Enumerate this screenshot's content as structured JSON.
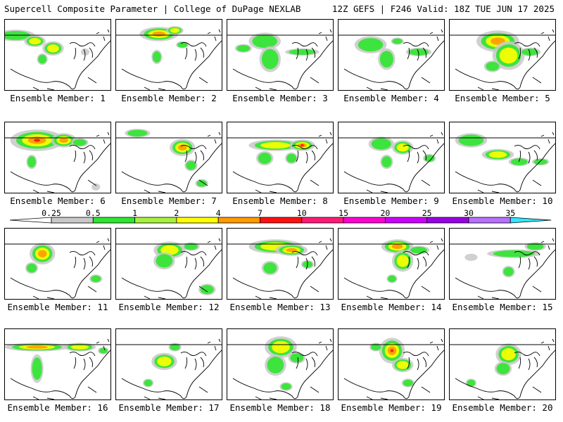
{
  "header": {
    "title_left": "Supercell Composite Parameter | College of DuPage NEXLAB",
    "title_right": "12Z GEFS | F246 Valid: 18Z TUE JUN 17 2025"
  },
  "member_label_prefix": "Ensemble Member: ",
  "members": [
    {
      "id": "1",
      "blobs": [
        [
          0.1,
          0.22,
          0.18,
          0.08,
          1
        ],
        [
          0.28,
          0.3,
          0.1,
          0.08,
          2
        ],
        [
          0.45,
          0.4,
          0.1,
          0.1,
          2
        ],
        [
          0.35,
          0.55,
          0.05,
          0.08,
          1
        ],
        [
          0.75,
          0.45,
          0.04,
          0.05,
          0
        ]
      ]
    },
    {
      "id": "2",
      "blobs": [
        [
          0.4,
          0.2,
          0.18,
          0.1,
          3
        ],
        [
          0.55,
          0.15,
          0.08,
          0.06,
          2
        ],
        [
          0.38,
          0.52,
          0.05,
          0.1,
          1
        ],
        [
          0.62,
          0.35,
          0.06,
          0.05,
          1
        ]
      ]
    },
    {
      "id": "3",
      "blobs": [
        [
          0.35,
          0.3,
          0.15,
          0.12,
          1
        ],
        [
          0.4,
          0.55,
          0.1,
          0.18,
          1
        ],
        [
          0.7,
          0.45,
          0.16,
          0.05,
          1
        ],
        [
          0.15,
          0.4,
          0.08,
          0.06,
          1
        ]
      ]
    },
    {
      "id": "4",
      "blobs": [
        [
          0.3,
          0.35,
          0.15,
          0.12,
          1
        ],
        [
          0.45,
          0.55,
          0.08,
          0.15,
          1
        ],
        [
          0.75,
          0.45,
          0.12,
          0.06,
          1
        ],
        [
          0.55,
          0.3,
          0.06,
          0.05,
          1
        ]
      ]
    },
    {
      "id": "5",
      "blobs": [
        [
          0.45,
          0.3,
          0.2,
          0.15,
          3
        ],
        [
          0.55,
          0.5,
          0.15,
          0.2,
          2
        ],
        [
          0.75,
          0.45,
          0.1,
          0.06,
          1
        ],
        [
          0.4,
          0.65,
          0.08,
          0.08,
          1
        ]
      ]
    },
    {
      "id": "6",
      "blobs": [
        [
          0.3,
          0.25,
          0.25,
          0.15,
          4
        ],
        [
          0.55,
          0.25,
          0.12,
          0.1,
          3
        ],
        [
          0.7,
          0.28,
          0.08,
          0.06,
          1
        ],
        [
          0.25,
          0.55,
          0.05,
          0.1,
          1
        ],
        [
          0.85,
          0.9,
          0.04,
          0.05,
          0
        ]
      ]
    },
    {
      "id": "7",
      "blobs": [
        [
          0.2,
          0.15,
          0.12,
          0.06,
          1
        ],
        [
          0.62,
          0.35,
          0.12,
          0.12,
          3
        ],
        [
          0.7,
          0.6,
          0.06,
          0.08,
          1
        ],
        [
          0.8,
          0.85,
          0.06,
          0.06,
          1
        ]
      ]
    },
    {
      "id": "8",
      "blobs": [
        [
          0.45,
          0.32,
          0.25,
          0.08,
          2
        ],
        [
          0.7,
          0.32,
          0.12,
          0.08,
          4
        ],
        [
          0.35,
          0.5,
          0.08,
          0.1,
          1
        ],
        [
          0.6,
          0.5,
          0.06,
          0.08,
          1
        ]
      ]
    },
    {
      "id": "9",
      "blobs": [
        [
          0.4,
          0.3,
          0.12,
          0.1,
          1
        ],
        [
          0.6,
          0.35,
          0.1,
          0.1,
          2
        ],
        [
          0.45,
          0.55,
          0.06,
          0.1,
          1
        ],
        [
          0.85,
          0.5,
          0.06,
          0.06,
          1
        ]
      ]
    },
    {
      "id": "10",
      "blobs": [
        [
          0.2,
          0.25,
          0.15,
          0.1,
          1
        ],
        [
          0.45,
          0.45,
          0.15,
          0.08,
          2
        ],
        [
          0.65,
          0.55,
          0.1,
          0.06,
          1
        ],
        [
          0.85,
          0.55,
          0.08,
          0.05,
          1
        ]
      ]
    },
    {
      "id": "11",
      "blobs": [
        [
          0.35,
          0.35,
          0.12,
          0.15,
          3
        ],
        [
          0.25,
          0.55,
          0.06,
          0.08,
          1
        ],
        [
          0.85,
          0.7,
          0.06,
          0.06,
          1
        ]
      ]
    },
    {
      "id": "12",
      "blobs": [
        [
          0.5,
          0.3,
          0.15,
          0.12,
          2
        ],
        [
          0.45,
          0.45,
          0.1,
          0.12,
          1
        ],
        [
          0.7,
          0.25,
          0.08,
          0.06,
          1
        ],
        [
          0.85,
          0.85,
          0.08,
          0.08,
          1
        ]
      ]
    },
    {
      "id": "13",
      "blobs": [
        [
          0.45,
          0.25,
          0.25,
          0.1,
          2
        ],
        [
          0.6,
          0.3,
          0.15,
          0.08,
          3
        ],
        [
          0.4,
          0.55,
          0.08,
          0.1,
          1
        ],
        [
          0.75,
          0.5,
          0.06,
          0.06,
          1
        ]
      ]
    },
    {
      "id": "14",
      "blobs": [
        [
          0.55,
          0.25,
          0.15,
          0.1,
          3
        ],
        [
          0.6,
          0.45,
          0.1,
          0.15,
          2
        ],
        [
          0.75,
          0.3,
          0.1,
          0.06,
          1
        ],
        [
          0.5,
          0.7,
          0.05,
          0.06,
          1
        ]
      ]
    },
    {
      "id": "15",
      "blobs": [
        [
          0.6,
          0.35,
          0.25,
          0.06,
          1
        ],
        [
          0.8,
          0.25,
          0.1,
          0.06,
          1
        ],
        [
          0.55,
          0.6,
          0.06,
          0.08,
          1
        ],
        [
          0.2,
          0.4,
          0.06,
          0.05,
          0
        ]
      ]
    },
    {
      "id": "16",
      "blobs": [
        [
          0.3,
          0.25,
          0.3,
          0.06,
          3
        ],
        [
          0.3,
          0.55,
          0.06,
          0.2,
          1
        ],
        [
          0.7,
          0.25,
          0.15,
          0.06,
          2
        ],
        [
          0.92,
          0.3,
          0.05,
          0.05,
          1
        ]
      ]
    },
    {
      "id": "17",
      "blobs": [
        [
          0.45,
          0.45,
          0.12,
          0.12,
          2
        ],
        [
          0.55,
          0.25,
          0.06,
          0.06,
          1
        ],
        [
          0.3,
          0.75,
          0.05,
          0.06,
          1
        ]
      ]
    },
    {
      "id": "18",
      "blobs": [
        [
          0.5,
          0.25,
          0.15,
          0.15,
          2
        ],
        [
          0.45,
          0.5,
          0.1,
          0.15,
          1
        ],
        [
          0.65,
          0.4,
          0.08,
          0.08,
          1
        ],
        [
          0.55,
          0.8,
          0.06,
          0.06,
          1
        ]
      ]
    },
    {
      "id": "19",
      "blobs": [
        [
          0.5,
          0.3,
          0.12,
          0.18,
          4
        ],
        [
          0.6,
          0.5,
          0.1,
          0.1,
          2
        ],
        [
          0.65,
          0.75,
          0.06,
          0.06,
          1
        ],
        [
          0.35,
          0.25,
          0.06,
          0.06,
          1
        ]
      ]
    },
    {
      "id": "20",
      "blobs": [
        [
          0.55,
          0.35,
          0.12,
          0.15,
          2
        ],
        [
          0.5,
          0.55,
          0.08,
          0.1,
          1
        ],
        [
          0.2,
          0.75,
          0.05,
          0.06,
          1
        ]
      ]
    }
  ],
  "colorbar": {
    "ticks": [
      "0.25",
      "0.5",
      "1",
      "2",
      "4",
      "7",
      "10",
      "15",
      "20",
      "25",
      "30",
      "35"
    ],
    "colors": [
      "#ffffff",
      "#c8c8c8",
      "#2ee62e",
      "#a6f23c",
      "#ffff00",
      "#ff9a00",
      "#ff1010",
      "#ff1a7a",
      "#ff00d2",
      "#cc00ff",
      "#9a00e6",
      "#b870ff",
      "#33e6ff"
    ]
  },
  "icons": {
    "colorbar_left": "arrow-left-triangle-icon",
    "colorbar_right": "arrow-right-triangle-icon"
  }
}
